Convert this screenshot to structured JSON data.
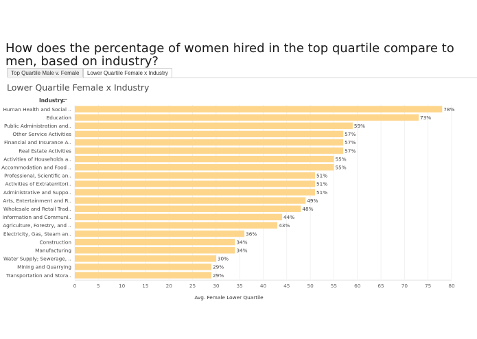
{
  "dashboard": {
    "question": "How does the percentage of women hired in the top quartile compare to men, based on industry?",
    "tabs": [
      {
        "label": "Top Quartile Male v. Female",
        "active": false
      },
      {
        "label": "Lower Quartile Female x Industry",
        "active": true
      }
    ],
    "sheet_title": "Lower Quartile Female x Industry",
    "row_header": "Industry"
  },
  "colors": {
    "bar": "#fdd68c",
    "axis_text": "#666666",
    "grid": "#ececec"
  },
  "chart_data": {
    "type": "bar",
    "orientation": "horizontal",
    "sorted": "descending",
    "categories": [
      "Human Health and Social ..",
      "Education",
      "Public Administration and..",
      "Other Service Activities",
      "Financial and Insurance A..",
      "Real Estate Activities",
      "Activities of Households a..",
      "Accommodation and Food ..",
      "Professional, Scientific an..",
      "Activities of Extraterritori..",
      "Administrative and Suppo..",
      "Arts, Entertainment and R..",
      "Wholesale and Retail Trad..",
      "Information and Communi..",
      "Agriculture, Forestry, and ..",
      "Electricity, Gas, Steam an..",
      "Construction",
      "Manufacturing",
      "Water Supply; Sewerage, ..",
      "Mining and Quarrying",
      "Transportation and Stora.."
    ],
    "values": [
      78,
      73,
      59,
      57,
      57,
      57,
      55,
      55,
      51,
      51,
      51,
      49,
      48,
      44,
      43,
      36,
      34,
      34,
      30,
      29,
      29
    ],
    "value_labels": [
      "78%",
      "73%",
      "59%",
      "57%",
      "57%",
      "57%",
      "55%",
      "55%",
      "51%",
      "51%",
      "51%",
      "49%",
      "48%",
      "44%",
      "43%",
      "36%",
      "34%",
      "34%",
      "30%",
      "29%",
      "29%"
    ],
    "xlabel": "Avg. Female Lower Quartile",
    "xlim": [
      0,
      80
    ],
    "xticks": [
      0,
      5,
      10,
      15,
      20,
      25,
      30,
      35,
      40,
      45,
      50,
      55,
      60,
      65,
      70,
      75,
      80
    ],
    "grid": true
  }
}
